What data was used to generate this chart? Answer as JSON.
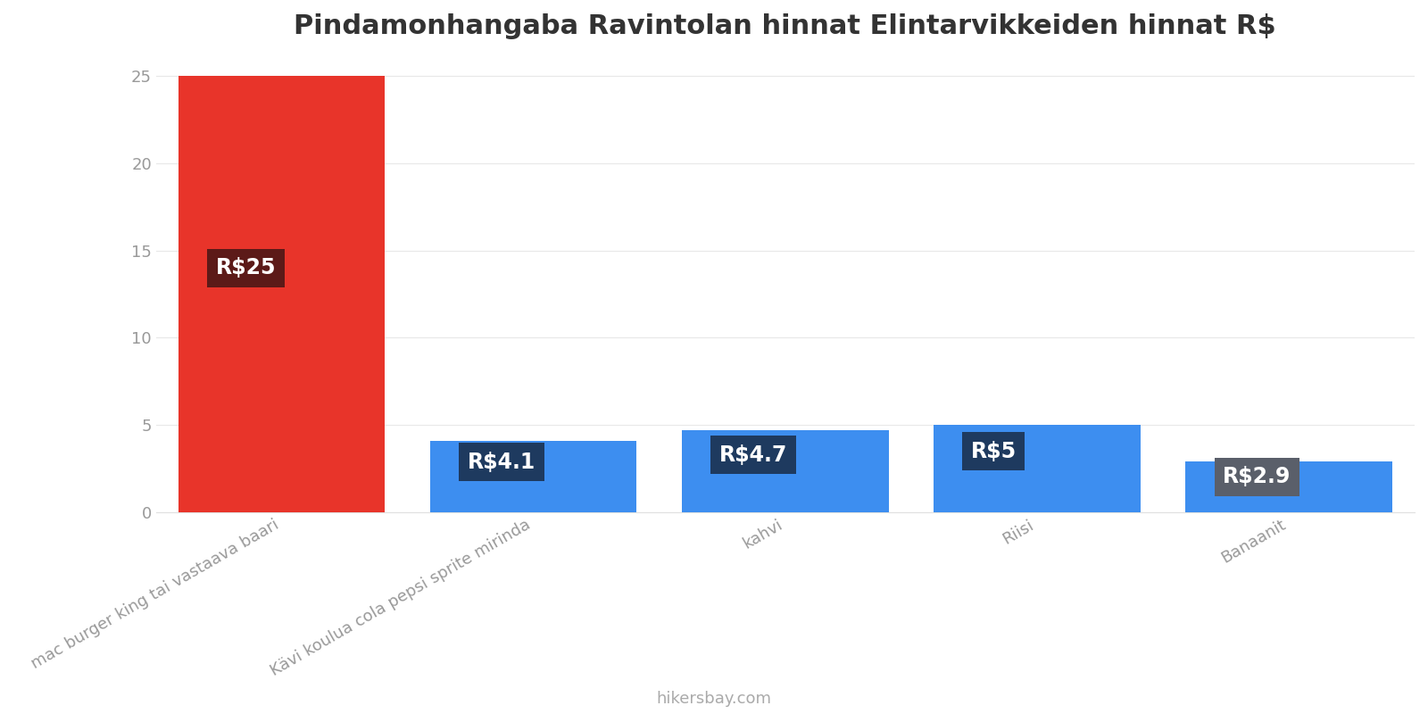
{
  "title": "Pindamonhangaba Ravintolan hinnat Elintarvikkeiden hinnat R$",
  "categories": [
    "mac burger king tai vastaava baari",
    "Kävi koulua cola pepsi sprite mirinda",
    "kahvi",
    "Riisi",
    "Banaanit"
  ],
  "values": [
    25,
    4.1,
    4.7,
    5,
    2.9
  ],
  "labels": [
    "R$25",
    "R$4.1",
    "R$4.7",
    "R$5",
    "R$2.9"
  ],
  "bar_colors": [
    "#e8342a",
    "#3d8ef0",
    "#3d8ef0",
    "#3d8ef0",
    "#3d8ef0"
  ],
  "label_bg_colors": [
    "#5c1a18",
    "#1e3a5f",
    "#1e3a5f",
    "#1e3a5f",
    "#5a5f6a"
  ],
  "ylim": [
    0,
    26
  ],
  "yticks": [
    0,
    5,
    10,
    15,
    20,
    25
  ],
  "title_fontsize": 22,
  "tick_fontsize": 13,
  "label_fontsize": 17,
  "watermark": "hikersbay.com",
  "background_color": "#ffffff"
}
